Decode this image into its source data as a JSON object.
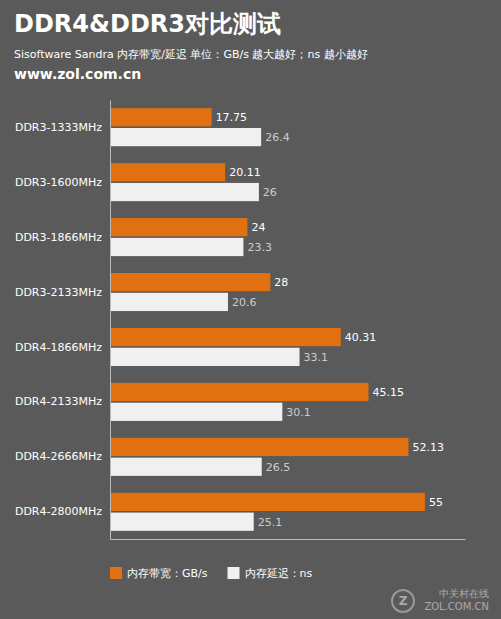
{
  "chart_data": {
    "type": "bar",
    "orientation": "horizontal",
    "title": "DDR4&DDR3对比测试",
    "subtitle": "Sisoftware Sandra 内存带宽/延迟   单位：GB/s 越大越好；ns 越小越好",
    "annotations": [
      "www.zol.com.cn",
      "中关村在线",
      "ZOL.COM.CN",
      "Z"
    ],
    "categories": [
      "DDR3-1333MHz",
      "DDR3-1600MHz",
      "DDR3-1866MHz",
      "DDR3-2133MHz",
      "DDR4-1866MHz",
      "DDR4-2133MHz",
      "DDR4-2666MHz",
      "DDR4-2800MHz"
    ],
    "series": [
      {
        "name": "内存带宽：GB/s",
        "color": "#E07010",
        "values": [
          17.75,
          20.11,
          24,
          28,
          40.31,
          45.15,
          52.13,
          55
        ]
      },
      {
        "name": "内存延迟：ns",
        "color": "#F0F0F0",
        "values": [
          26.4,
          26,
          23.3,
          20.6,
          33.1,
          30.1,
          26.5,
          25.1
        ]
      }
    ],
    "xlim": [
      0,
      62
    ],
    "data_labels": true,
    "tick_labels": "y",
    "legend": "bottom",
    "grid": false
  }
}
